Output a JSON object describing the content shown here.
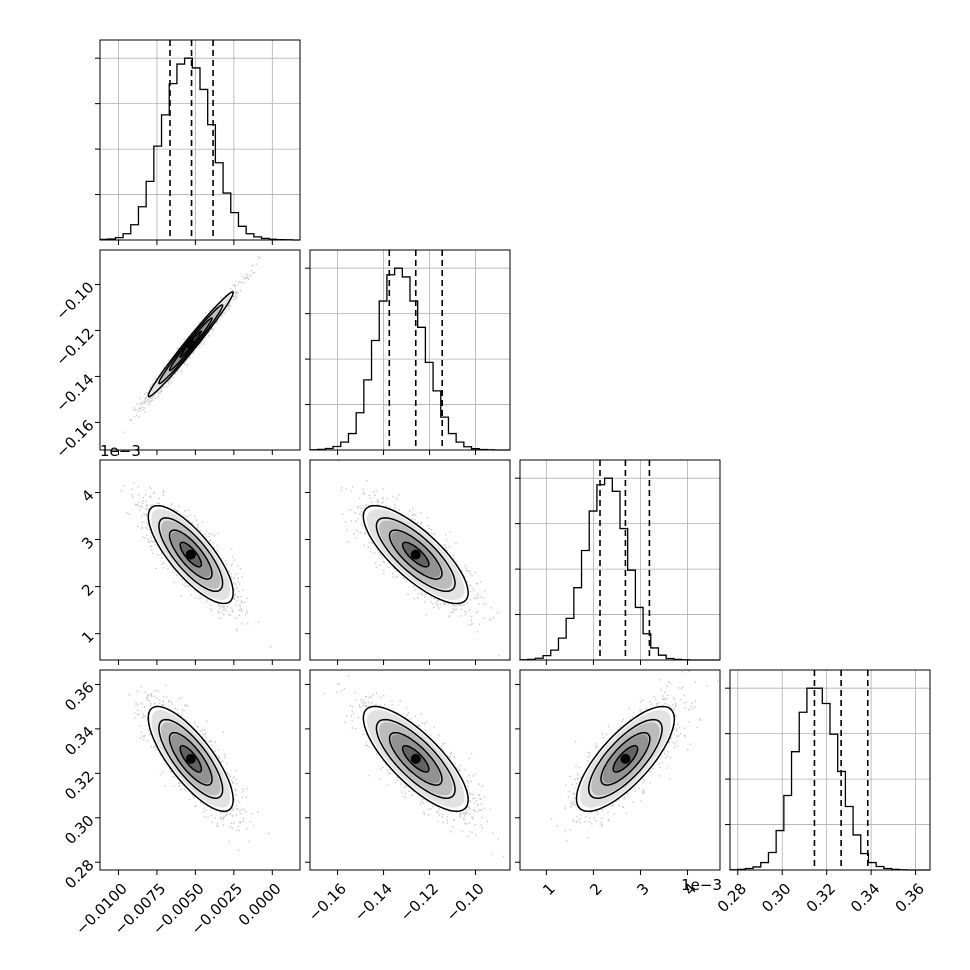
{
  "chart_data": {
    "type": "corner",
    "grid": true,
    "parameters": [
      {
        "range": [
          -0.0112,
          0.0018
        ],
        "ticks": [
          -0.01,
          -0.0075,
          -0.005,
          -0.0025,
          0.0
        ],
        "tick_labels": [
          "−0.0100",
          "−0.0075",
          "−0.0050",
          "−0.0025",
          "0.0000"
        ],
        "quantiles": [
          -0.00665,
          -0.00525,
          -0.00385
        ],
        "offset_label": ""
      },
      {
        "range": [
          -0.172,
          -0.085
        ],
        "ticks": [
          -0.16,
          -0.14,
          -0.12,
          -0.1
        ],
        "tick_labels": [
          "−0.16",
          "−0.14",
          "−0.12",
          "−0.10"
        ],
        "quantiles": [
          -0.1375,
          -0.126,
          -0.1145
        ],
        "offset_label": ""
      },
      {
        "range": [
          0.00044,
          0.00469
        ],
        "ticks": [
          0.001,
          0.002,
          0.003,
          0.004
        ],
        "tick_labels": [
          "1",
          "2",
          "3",
          "4"
        ],
        "quantiles": [
          0.00214,
          0.00268,
          0.00319
        ],
        "offset_label": "1e−3"
      },
      {
        "range": [
          0.2765,
          0.3665
        ],
        "ticks": [
          0.28,
          0.3,
          0.32,
          0.34,
          0.36
        ],
        "tick_labels": [
          "0.28",
          "0.30",
          "0.32",
          "0.34",
          "0.36"
        ],
        "quantiles": [
          0.3145,
          0.3265,
          0.3385
        ],
        "offset_label": ""
      }
    ],
    "histograms": [
      {
        "edges_range": [
          -0.0112,
          0.0018
        ],
        "bins": 26,
        "counts": [
          3,
          5,
          12,
          32,
          78,
          170,
          300,
          480,
          640,
          800,
          900,
          930,
          880,
          770,
          590,
          395,
          240,
          140,
          70,
          32,
          16,
          8,
          4,
          2,
          1,
          0
        ]
      },
      {
        "edges_range": [
          -0.172,
          -0.085
        ],
        "bins": 26,
        "counts": [
          1,
          3,
          7,
          16,
          36,
          75,
          170,
          320,
          500,
          680,
          800,
          830,
          790,
          680,
          560,
          400,
          270,
          150,
          75,
          36,
          15,
          6,
          2,
          1,
          0,
          0
        ]
      },
      {
        "edges_range": [
          0.00044,
          0.00469
        ],
        "bins": 26,
        "counts": [
          1,
          3,
          8,
          20,
          45,
          100,
          190,
          330,
          500,
          680,
          800,
          830,
          770,
          600,
          410,
          240,
          120,
          55,
          22,
          7,
          3,
          1,
          0,
          0,
          0,
          0
        ]
      },
      {
        "edges_range": [
          0.2765,
          0.3665
        ],
        "bins": 26,
        "counts": [
          1,
          3,
          7,
          14,
          34,
          80,
          180,
          340,
          540,
          720,
          830,
          830,
          760,
          620,
          450,
          290,
          160,
          75,
          34,
          16,
          7,
          3,
          1,
          0,
          0,
          0
        ]
      }
    ],
    "pairs": [
      {
        "x": 0,
        "y": 1,
        "mean": [
          -0.0053,
          -0.126
        ],
        "sd": [
          0.00138,
          0.0114
        ],
        "rho": 0.985
      },
      {
        "x": 0,
        "y": 2,
        "mean": [
          -0.0053,
          0.00268
        ],
        "sd": [
          0.00138,
          0.00052
        ],
        "rho": -0.78
      },
      {
        "x": 1,
        "y": 2,
        "mean": [
          -0.126,
          0.00268
        ],
        "sd": [
          0.0114,
          0.00052
        ],
        "rho": -0.78
      },
      {
        "x": 0,
        "y": 3,
        "mean": [
          -0.0053,
          0.3265
        ],
        "sd": [
          0.00138,
          0.0118
        ],
        "rho": -0.78
      },
      {
        "x": 1,
        "y": 3,
        "mean": [
          -0.126,
          0.3265
        ],
        "sd": [
          0.0114,
          0.0118
        ],
        "rho": -0.78
      },
      {
        "x": 2,
        "y": 3,
        "mean": [
          0.00268,
          0.3265
        ],
        "sd": [
          0.00052,
          0.0118
        ],
        "rho": 0.76
      }
    ],
    "contour_levels_sigma": [
      0.5,
      1.0,
      1.5,
      2.0
    ],
    "colors": {
      "line": "#000000",
      "points": "#888888",
      "grid": "#b0b0b0"
    }
  }
}
